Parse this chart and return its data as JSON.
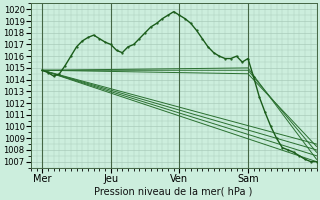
{
  "title": "",
  "xlabel": "Pression niveau de la mer( hPa )",
  "ylabel": "",
  "ylim": [
    1006.5,
    1020.5
  ],
  "xlim": [
    0,
    100
  ],
  "yticks": [
    1007,
    1008,
    1009,
    1010,
    1011,
    1012,
    1013,
    1014,
    1015,
    1016,
    1017,
    1018,
    1019,
    1020
  ],
  "xtick_positions": [
    4,
    28,
    52,
    76
  ],
  "xtick_labels": [
    "Mer",
    "Jeu",
    "Ven",
    "Sam"
  ],
  "bg_color": "#cceedd",
  "grid_color": "#aaccbb",
  "line_dark": "#1a5c1a",
  "line_mid": "#2a7030",
  "vline_positions": [
    4,
    28,
    52,
    76
  ],
  "series_main": [
    [
      4,
      1014.8
    ],
    [
      6,
      1014.6
    ],
    [
      8,
      1014.3
    ],
    [
      10,
      1014.5
    ],
    [
      12,
      1015.2
    ],
    [
      14,
      1016.0
    ],
    [
      16,
      1016.8
    ],
    [
      18,
      1017.3
    ],
    [
      20,
      1017.6
    ],
    [
      22,
      1017.8
    ],
    [
      24,
      1017.5
    ],
    [
      26,
      1017.2
    ],
    [
      28,
      1017.0
    ],
    [
      30,
      1016.5
    ],
    [
      32,
      1016.3
    ],
    [
      34,
      1016.8
    ],
    [
      36,
      1017.0
    ],
    [
      38,
      1017.5
    ],
    [
      40,
      1018.0
    ],
    [
      42,
      1018.5
    ],
    [
      44,
      1018.8
    ],
    [
      46,
      1019.2
    ],
    [
      48,
      1019.5
    ],
    [
      50,
      1019.8
    ],
    [
      52,
      1019.5
    ],
    [
      54,
      1019.2
    ],
    [
      56,
      1018.8
    ],
    [
      58,
      1018.2
    ],
    [
      60,
      1017.5
    ],
    [
      62,
      1016.8
    ],
    [
      64,
      1016.3
    ],
    [
      66,
      1016.0
    ],
    [
      68,
      1015.8
    ],
    [
      70,
      1015.8
    ],
    [
      72,
      1016.0
    ],
    [
      74,
      1015.5
    ],
    [
      76,
      1015.8
    ],
    [
      78,
      1014.2
    ],
    [
      80,
      1012.5
    ],
    [
      82,
      1011.2
    ],
    [
      84,
      1010.0
    ],
    [
      86,
      1009.0
    ],
    [
      88,
      1008.2
    ],
    [
      90,
      1008.0
    ],
    [
      92,
      1007.8
    ],
    [
      94,
      1007.5
    ],
    [
      96,
      1007.2
    ],
    [
      98,
      1007.0
    ],
    [
      100,
      1007.0
    ]
  ],
  "series_linear": [
    [
      [
        4,
        1014.8
      ],
      [
        100,
        1007.0
      ]
    ],
    [
      [
        4,
        1014.8
      ],
      [
        100,
        1007.5
      ]
    ],
    [
      [
        4,
        1014.8
      ],
      [
        100,
        1008.0
      ]
    ],
    [
      [
        4,
        1014.8
      ],
      [
        100,
        1008.5
      ]
    ],
    [
      [
        4,
        1014.8
      ],
      [
        76,
        1015.0
      ],
      [
        100,
        1007.2
      ]
    ],
    [
      [
        4,
        1014.8
      ],
      [
        76,
        1014.8
      ],
      [
        100,
        1007.8
      ]
    ],
    [
      [
        4,
        1014.8
      ],
      [
        76,
        1014.5
      ],
      [
        100,
        1008.3
      ]
    ]
  ]
}
